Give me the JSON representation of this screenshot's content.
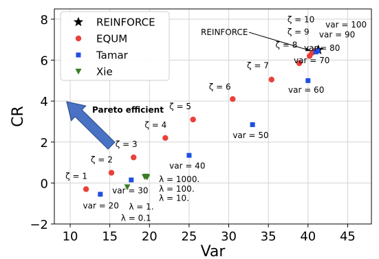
{
  "chart_data": {
    "type": "scatter",
    "title": "",
    "xlabel": "Var",
    "ylabel": "CR",
    "xlim": [
      8,
      48
    ],
    "ylim": [
      -2,
      8.5
    ],
    "xticks": [
      "10",
      "15",
      "20",
      "25",
      "30",
      "35",
      "40",
      "45"
    ],
    "yticks": [
      "−2",
      "0",
      "2",
      "4",
      "6",
      "8"
    ],
    "grid": true,
    "legend_position": "top-left",
    "series": [
      {
        "name": "REINFORCE",
        "marker": "star",
        "color": "#000000",
        "points": [
          {
            "x": 41.3,
            "y": 6.5
          }
        ]
      },
      {
        "name": "EQUM",
        "marker": "circle",
        "color": "#e8413a",
        "points": [
          {
            "x": 12.0,
            "y": -0.3
          },
          {
            "x": 15.2,
            "y": 0.5
          },
          {
            "x": 18.0,
            "y": 1.25
          },
          {
            "x": 22.0,
            "y": 2.2
          },
          {
            "x": 25.5,
            "y": 3.1
          },
          {
            "x": 30.5,
            "y": 4.1
          },
          {
            "x": 35.4,
            "y": 5.05
          },
          {
            "x": 38.9,
            "y": 5.85
          },
          {
            "x": 40.2,
            "y": 6.2
          },
          {
            "x": 40.5,
            "y": 6.35
          },
          {
            "x": 40.9,
            "y": 6.45
          }
        ]
      },
      {
        "name": "Tamar",
        "marker": "square",
        "color": "#1f4fe0",
        "points": [
          {
            "x": 13.8,
            "y": -0.55
          },
          {
            "x": 17.7,
            "y": 0.15
          },
          {
            "x": 25.0,
            "y": 1.35
          },
          {
            "x": 33.0,
            "y": 2.85
          },
          {
            "x": 40.0,
            "y": 5.0
          },
          {
            "x": 41.0,
            "y": 6.4
          },
          {
            "x": 41.2,
            "y": 6.45
          }
        ]
      },
      {
        "name": "Xie",
        "marker": "triangle",
        "color": "#3b7d23",
        "points": [
          {
            "x": 17.2,
            "y": -0.2
          },
          {
            "x": 19.4,
            "y": 0.3
          },
          {
            "x": 19.6,
            "y": 0.32
          },
          {
            "x": 19.7,
            "y": 0.28
          }
        ]
      }
    ],
    "annotations": [
      {
        "text": "ζ = 1",
        "x": 9.4,
        "y": 0.2
      },
      {
        "text": "ζ = 2",
        "x": 12.6,
        "y": 1.0
      },
      {
        "text": "ζ = 3",
        "x": 15.7,
        "y": 1.75
      },
      {
        "text": "ζ = 4",
        "x": 19.4,
        "y": 2.7
      },
      {
        "text": "ζ = 5",
        "x": 22.5,
        "y": 3.6
      },
      {
        "text": "ζ = 6",
        "x": 27.5,
        "y": 4.55
      },
      {
        "text": "ζ = 7",
        "x": 32.3,
        "y": 5.6
      },
      {
        "text": "ζ = 8",
        "x": 35.9,
        "y": 6.6
      },
      {
        "text": "ζ = 9",
        "x": 37.4,
        "y": 7.25
      },
      {
        "text": "ζ = 10",
        "x": 37.4,
        "y": 7.85
      },
      {
        "text": "var = 20",
        "x": 11.6,
        "y": -1.25
      },
      {
        "text": "var = 30",
        "x": 15.3,
        "y": -0.5
      },
      {
        "text": "var = 40",
        "x": 22.5,
        "y": 0.7
      },
      {
        "text": "var = 50",
        "x": 30.5,
        "y": 2.2
      },
      {
        "text": "var = 60",
        "x": 37.5,
        "y": 4.4
      },
      {
        "text": "var = 70",
        "x": 38.2,
        "y": 5.85
      },
      {
        "text": "var = 80",
        "x": 39.5,
        "y": 6.45
      },
      {
        "text": "var = 90",
        "x": 41.4,
        "y": 7.1
      },
      {
        "text": "var = 100",
        "x": 42.2,
        "y": 7.6
      },
      {
        "text": "λ = 1000.",
        "x": 21.2,
        "y": 0.05
      },
      {
        "text": "λ = 100.",
        "x": 21.2,
        "y": -0.42
      },
      {
        "text": "λ = 10.",
        "x": 21.2,
        "y": -0.88
      },
      {
        "text": "λ = 1.",
        "x": 17.4,
        "y": -1.3
      },
      {
        "text": "λ = 0.1",
        "x": 16.4,
        "y": -1.85
      }
    ],
    "arrow_labels": {
      "reinforce": "REINFORCE",
      "pareto": "Pareto efficient"
    }
  }
}
